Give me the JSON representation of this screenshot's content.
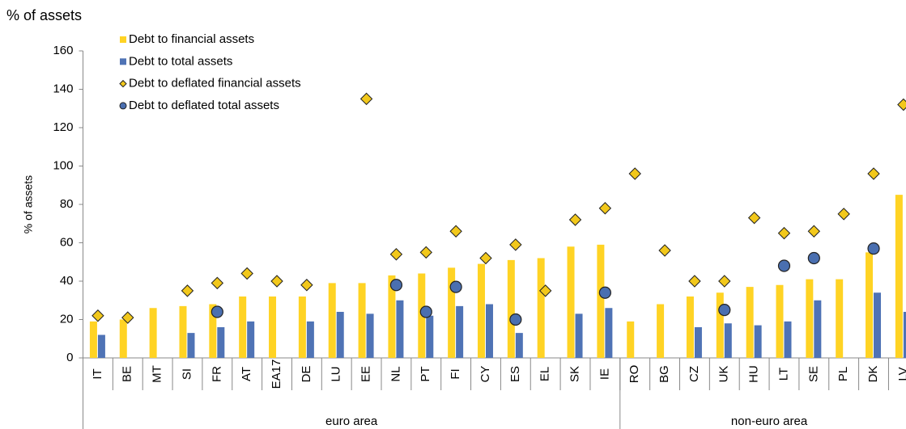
{
  "chart_data": {
    "type": "bar",
    "title": "% of assets",
    "y_label": "% of assets",
    "categories": [
      "IT",
      "BE",
      "MT",
      "SI",
      "FR",
      "AT",
      "EA17",
      "DE",
      "LU",
      "EE",
      "NL",
      "PT",
      "FI",
      "CY",
      "ES",
      "EL",
      "SK",
      "IE",
      "RO",
      "BG",
      "CZ",
      "UK",
      "HU",
      "LT",
      "SE",
      "PL",
      "DK",
      "LV"
    ],
    "groups": [
      {
        "label": "euro area",
        "count": 18
      },
      {
        "label": "non-euro area",
        "count": 10
      }
    ],
    "series": [
      {
        "name": "Debt to financial  assets",
        "kind": "bar",
        "color": "#FFD324",
        "values": [
          19,
          20,
          26,
          27,
          28,
          32,
          32,
          32,
          39,
          39,
          43,
          44,
          47,
          49,
          51,
          52,
          58,
          59,
          19,
          28,
          32,
          34,
          37,
          38,
          41,
          41,
          55,
          85
        ]
      },
      {
        "name": "Debt to total  assets",
        "kind": "bar",
        "color": "#4F73B5",
        "values": [
          12,
          null,
          null,
          13,
          16,
          19,
          null,
          19,
          24,
          23,
          30,
          22,
          27,
          28,
          13,
          null,
          23,
          26,
          null,
          null,
          16,
          18,
          17,
          19,
          30,
          null,
          34,
          24
        ]
      },
      {
        "name": "Debt to deflated financial assets",
        "kind": "marker",
        "marker": "diamond",
        "color": "#F2C81B",
        "values": [
          22,
          21,
          null,
          35,
          39,
          44,
          40,
          38,
          null,
          135,
          54,
          55,
          66,
          52,
          59,
          35,
          72,
          78,
          96,
          56,
          40,
          40,
          73,
          65,
          66,
          75,
          96,
          132
        ]
      },
      {
        "name": "Debt to deflated total assets",
        "kind": "marker",
        "marker": "circle",
        "color": "#4A6FB0",
        "values": [
          null,
          null,
          null,
          null,
          24,
          null,
          null,
          null,
          null,
          null,
          38,
          24,
          37,
          null,
          20,
          null,
          null,
          34,
          null,
          null,
          null,
          25,
          null,
          48,
          52,
          null,
          57,
          null
        ]
      }
    ],
    "ylim": [
      0,
      160
    ],
    "yticks": [
      0,
      20,
      40,
      60,
      80,
      100,
      120,
      140,
      160
    ]
  }
}
